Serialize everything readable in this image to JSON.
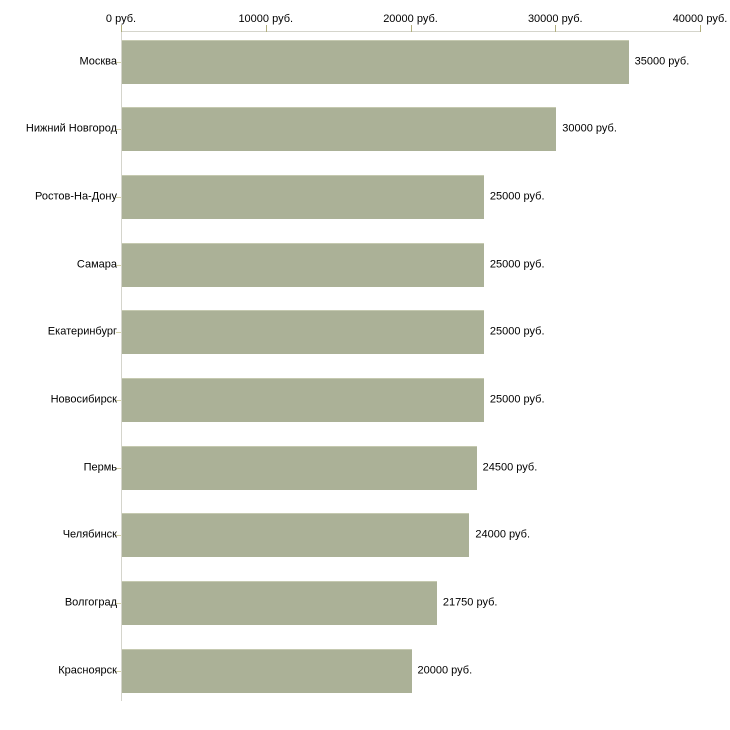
{
  "chart_data": {
    "type": "bar",
    "orientation": "horizontal",
    "title": "",
    "legend": "none",
    "grid": "off",
    "unit": "руб.",
    "categories": [
      "Москва",
      "Нижний Новгород",
      "Ростов-На-Дону",
      "Самара",
      "Екатеринбург",
      "Новосибирск",
      "Пермь",
      "Челябинск",
      "Волгоград",
      "Красноярск"
    ],
    "values": [
      35000,
      30000,
      25000,
      25000,
      25000,
      25000,
      24500,
      24000,
      21750,
      20000
    ],
    "value_labels": [
      "35000 руб.",
      "30000 руб.",
      "25000 руб.",
      "25000 руб.",
      "25000 руб.",
      "25000 руб.",
      "24500 руб.",
      "24000 руб.",
      "21750 руб.",
      "20000 руб."
    ],
    "x_axis": {
      "position": "top",
      "min": 0,
      "max": 40000,
      "tick_values": [
        0,
        10000,
        20000,
        30000,
        40000
      ],
      "tick_labels": [
        "0 руб.",
        "10000 руб.",
        "20000 руб.",
        "30000 руб.",
        "40000 руб."
      ]
    },
    "colors": {
      "bar": "#abb197",
      "bar_highlight": "#c5c9b0",
      "axis": "#d5d5cc",
      "x_tick": "#b1ae7c",
      "y_tick": "#d4d1a9",
      "text": "#000000",
      "background": "#ffffff"
    }
  }
}
